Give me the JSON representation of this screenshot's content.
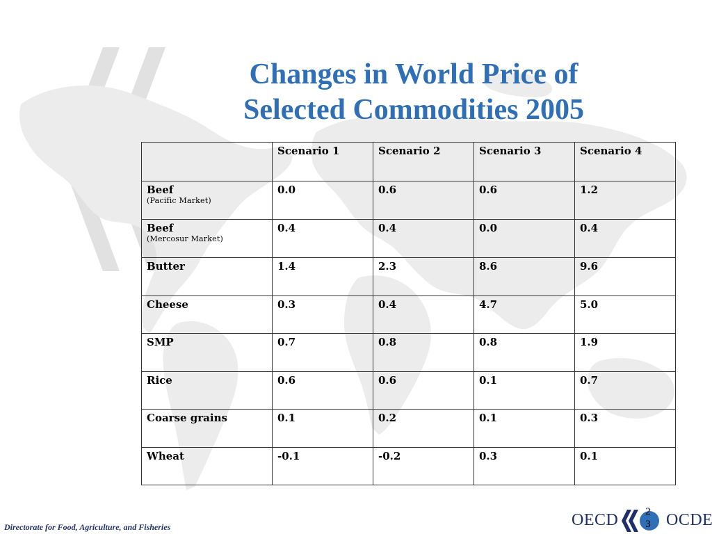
{
  "title": {
    "line1": "Changes in World Price of",
    "line2": "Selected Commodities 2005"
  },
  "table": {
    "headers": [
      "",
      "Scenario 1",
      "Scenario 2",
      "Scenario 3",
      "Scenario 4"
    ],
    "rows": [
      {
        "label": "Beef",
        "sublabel": "(Pacific Market)",
        "values": [
          "0.0",
          "0.6",
          "0.6",
          "1.2"
        ]
      },
      {
        "label": "Beef",
        "sublabel": "(Mercosur Market)",
        "values": [
          "0.4",
          "0.4",
          "0.0",
          "0.4"
        ]
      },
      {
        "label": "Butter",
        "sublabel": "",
        "values": [
          "1.4",
          "2.3",
          "8.6",
          "9.6"
        ]
      },
      {
        "label": "Cheese",
        "sublabel": "",
        "values": [
          "0.3",
          "0.4",
          "4.7",
          "5.0"
        ]
      },
      {
        "label": "SMP",
        "sublabel": "",
        "values": [
          "0.7",
          "0.8",
          "0.8",
          "1.9"
        ]
      },
      {
        "label": "Rice",
        "sublabel": "",
        "values": [
          "0.6",
          "0.6",
          "0.1",
          "0.7"
        ]
      },
      {
        "label": "Coarse grains",
        "sublabel": "",
        "values": [
          "0.1",
          "0.2",
          "0.1",
          "0.3"
        ]
      },
      {
        "label": "Wheat",
        "sublabel": "",
        "values": [
          "-0.1",
          "-0.2",
          "0.3",
          "0.1"
        ]
      }
    ]
  },
  "footer": {
    "text": "Directorate for Food, Agriculture, and Fisheries"
  },
  "logo": {
    "left_text": "OECD",
    "right_text": "OCDE"
  },
  "page_number": {
    "line1": "2",
    "line2": "3"
  },
  "colors": {
    "title": "#2f6fb5",
    "logo_text": "#1f2f6a",
    "logo_circle": "#2f6fb5",
    "watermark": "#e3e3e3"
  }
}
